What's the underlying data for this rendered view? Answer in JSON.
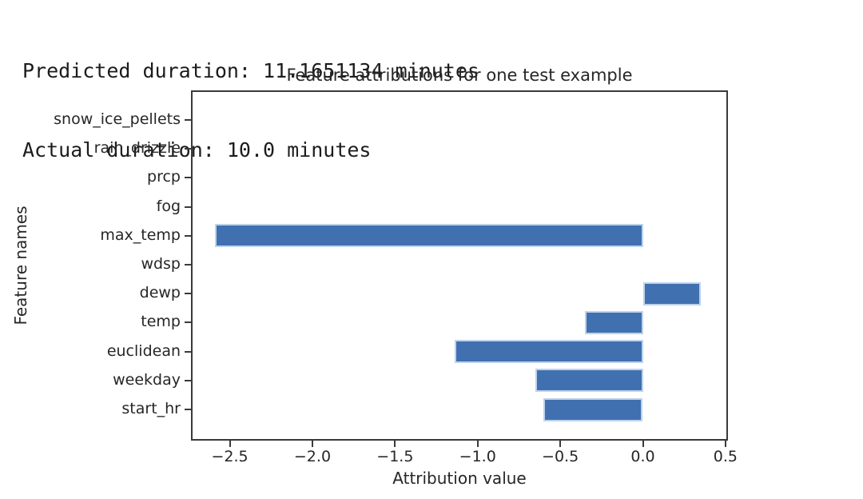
{
  "header": {
    "line1": "Predicted duration: 11.1651134 minutes",
    "line2": "Actual duration: 10.0 minutes"
  },
  "chart_data": {
    "type": "bar",
    "orientation": "horizontal",
    "title": "Feature attributions for one test example",
    "xlabel": "Attribution value",
    "ylabel": "Feature names",
    "categories": [
      "snow_ice_pellets",
      "rain_drizzle",
      "prcp",
      "fog",
      "max_temp",
      "wdsp",
      "dewp",
      "temp",
      "euclidean",
      "weekday",
      "start_hr"
    ],
    "values": [
      0,
      0,
      0,
      0,
      -2.59,
      0,
      0.35,
      -0.35,
      -1.14,
      -0.65,
      -0.6
    ],
    "xticks": [
      -2.5,
      -2.0,
      -1.5,
      -1.0,
      -0.5,
      0.0,
      0.5
    ],
    "xtick_labels": [
      "−2.5",
      "−2.0",
      "−1.5",
      "−1.0",
      "−0.5",
      "0.0",
      "0.5"
    ],
    "xlim": [
      -2.735,
      0.515
    ],
    "grid": false,
    "bar_color": "#4070af",
    "bar_edge_color": "#bdd2ec",
    "axis_color": "#3a3a3a",
    "text_color": "#262626"
  }
}
